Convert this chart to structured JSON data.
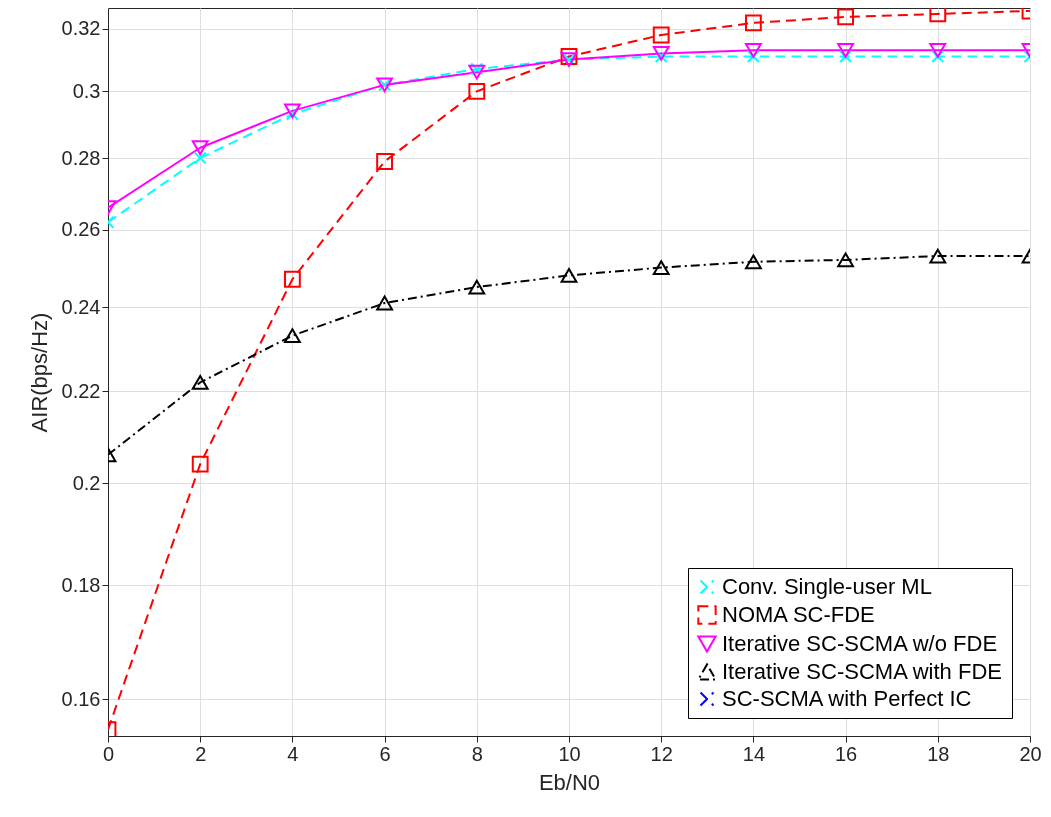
{
  "chart_data": {
    "type": "line",
    "xlabel": "Eb/N0",
    "ylabel": "AIR(bps/Hz)",
    "x": [
      0,
      2,
      4,
      6,
      8,
      10,
      12,
      14,
      16,
      18,
      20
    ],
    "xlim": [
      0,
      20
    ],
    "xticks": [
      0,
      2,
      4,
      6,
      8,
      10,
      12,
      14,
      16,
      18,
      20
    ],
    "ylim": [
      0.154,
      0.327
    ],
    "yticks": [
      0.16,
      0.18,
      0.2,
      0.22,
      0.24,
      0.26,
      0.28,
      0.3,
      0.32
    ],
    "log": "y",
    "grid": true,
    "legend": "bottom right",
    "series": [
      {
        "name": "Conv. Single-user ML",
        "color": "#00ffff",
        "marker": "cross",
        "line_style": "dashed",
        "values": [
          0.262,
          0.28,
          0.293,
          0.302,
          0.307,
          0.31,
          0.311,
          0.311,
          0.311,
          0.311,
          0.311
        ]
      },
      {
        "name": "NOMA SC-FDE",
        "color": "#ff0000",
        "marker": "square",
        "line_style": "dashed",
        "values": [
          0.155,
          0.204,
          0.247,
          0.279,
          0.3,
          0.311,
          0.318,
          0.322,
          0.324,
          0.325,
          0.326
        ]
      },
      {
        "name": "Iterative SC-SCMA w/o FDE",
        "color": "#ff00ff",
        "marker": "triangle-down",
        "line_style": "solid",
        "values": [
          0.266,
          0.283,
          0.294,
          0.302,
          0.306,
          0.31,
          0.312,
          0.313,
          0.313,
          0.313,
          0.313
        ]
      },
      {
        "name": "Iterative SC-SCMA with FDE",
        "color": "#000000",
        "marker": "triangle",
        "line_style": "dashdot",
        "values": [
          0.206,
          0.222,
          0.233,
          0.241,
          0.245,
          0.248,
          0.25,
          0.2515,
          0.252,
          0.253,
          0.253
        ]
      },
      {
        "name": "SC-SCMA with Perfect IC",
        "color": "#0000ff",
        "marker": "cross",
        "line_style": "dashed",
        "values": [
          null,
          null,
          null,
          null,
          null,
          null,
          null,
          null,
          null,
          null,
          null
        ]
      }
    ]
  }
}
